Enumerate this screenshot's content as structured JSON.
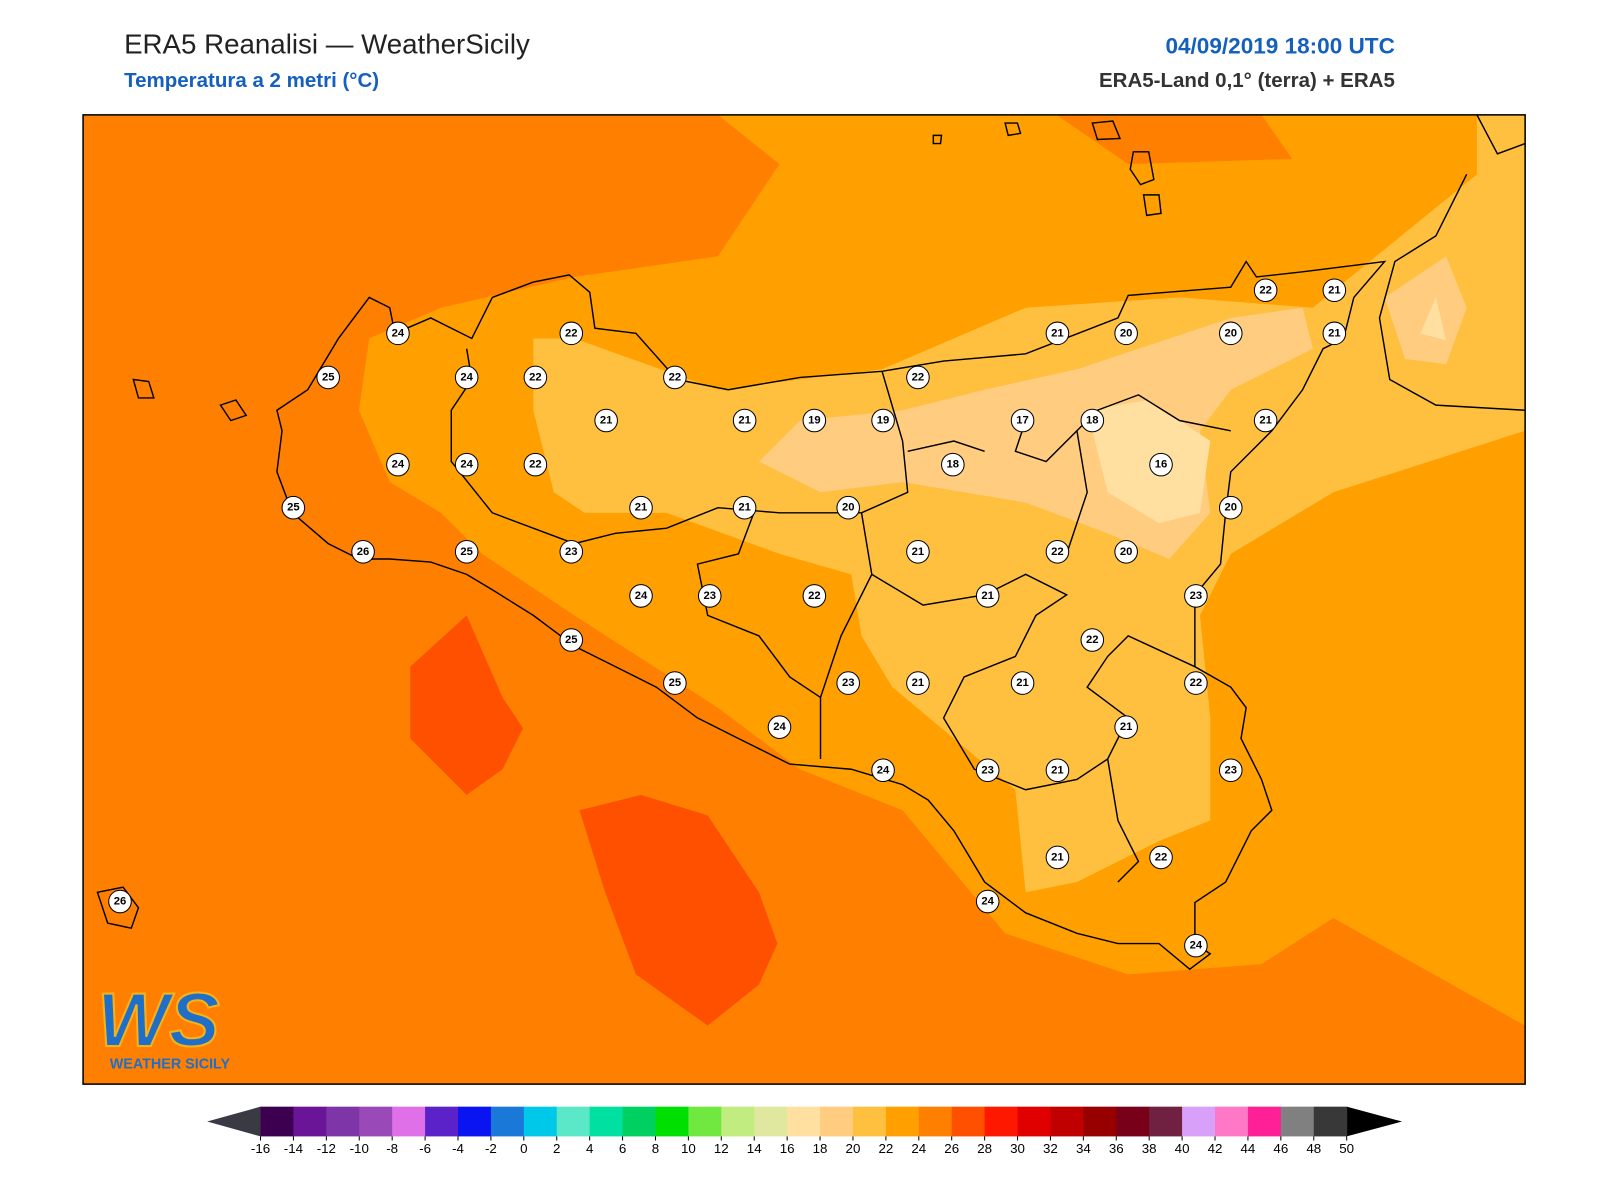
{
  "header": {
    "title": "ERA5 Reanalisi — WeatherSicily",
    "subtitle": "Temperatura a 2 metri (°C)",
    "datetime": "04/09/2019 18:00 UTC",
    "source": "ERA5-Land 0,1° (terra) + ERA5"
  },
  "stations": [
    24,
    22,
    21,
    20,
    20,
    21,
    22,
    21,
    25,
    24,
    22,
    22,
    22,
    21,
    21,
    19,
    19,
    17,
    18,
    21,
    24,
    24,
    22,
    18,
    16,
    25,
    21,
    21,
    20,
    20,
    26,
    25,
    23,
    21,
    22,
    20,
    24,
    23,
    22,
    21,
    23,
    25,
    22,
    25,
    23,
    21,
    21,
    22,
    24,
    21,
    24,
    23,
    21,
    23,
    21,
    22,
    24,
    24,
    26
  ],
  "colorbar": {
    "ticks": [
      -16,
      -14,
      -12,
      -10,
      -8,
      -6,
      -4,
      -2,
      0,
      2,
      4,
      6,
      8,
      10,
      12,
      14,
      16,
      18,
      20,
      22,
      24,
      26,
      28,
      30,
      32,
      34,
      36,
      38,
      40,
      42,
      44,
      46,
      48,
      50
    ],
    "colors": [
      "#3d0050",
      "#6a1597",
      "#7e35a8",
      "#9a4ab8",
      "#e070e8",
      "#5a22c8",
      "#0a14f0",
      "#1a78d8",
      "#00c8e8",
      "#5ae8c8",
      "#00e0a0",
      "#00d060",
      "#00e000",
      "#70e840",
      "#c0ec80",
      "#e0e8a0",
      "#ffe0a0",
      "#ffcc80",
      "#ffc040",
      "#ffa000",
      "#ff8000",
      "#ff5000",
      "#ff1800",
      "#e00000",
      "#c00000",
      "#980000",
      "#780018",
      "#702040",
      "#d8a0f8",
      "#ff78c8",
      "#ff2098",
      "#808080",
      "#383838"
    ],
    "under_color": "#3a3a44",
    "over_color": "#000000"
  },
  "logo": {
    "mark": "WS",
    "text": "WEATHER SICILY"
  }
}
